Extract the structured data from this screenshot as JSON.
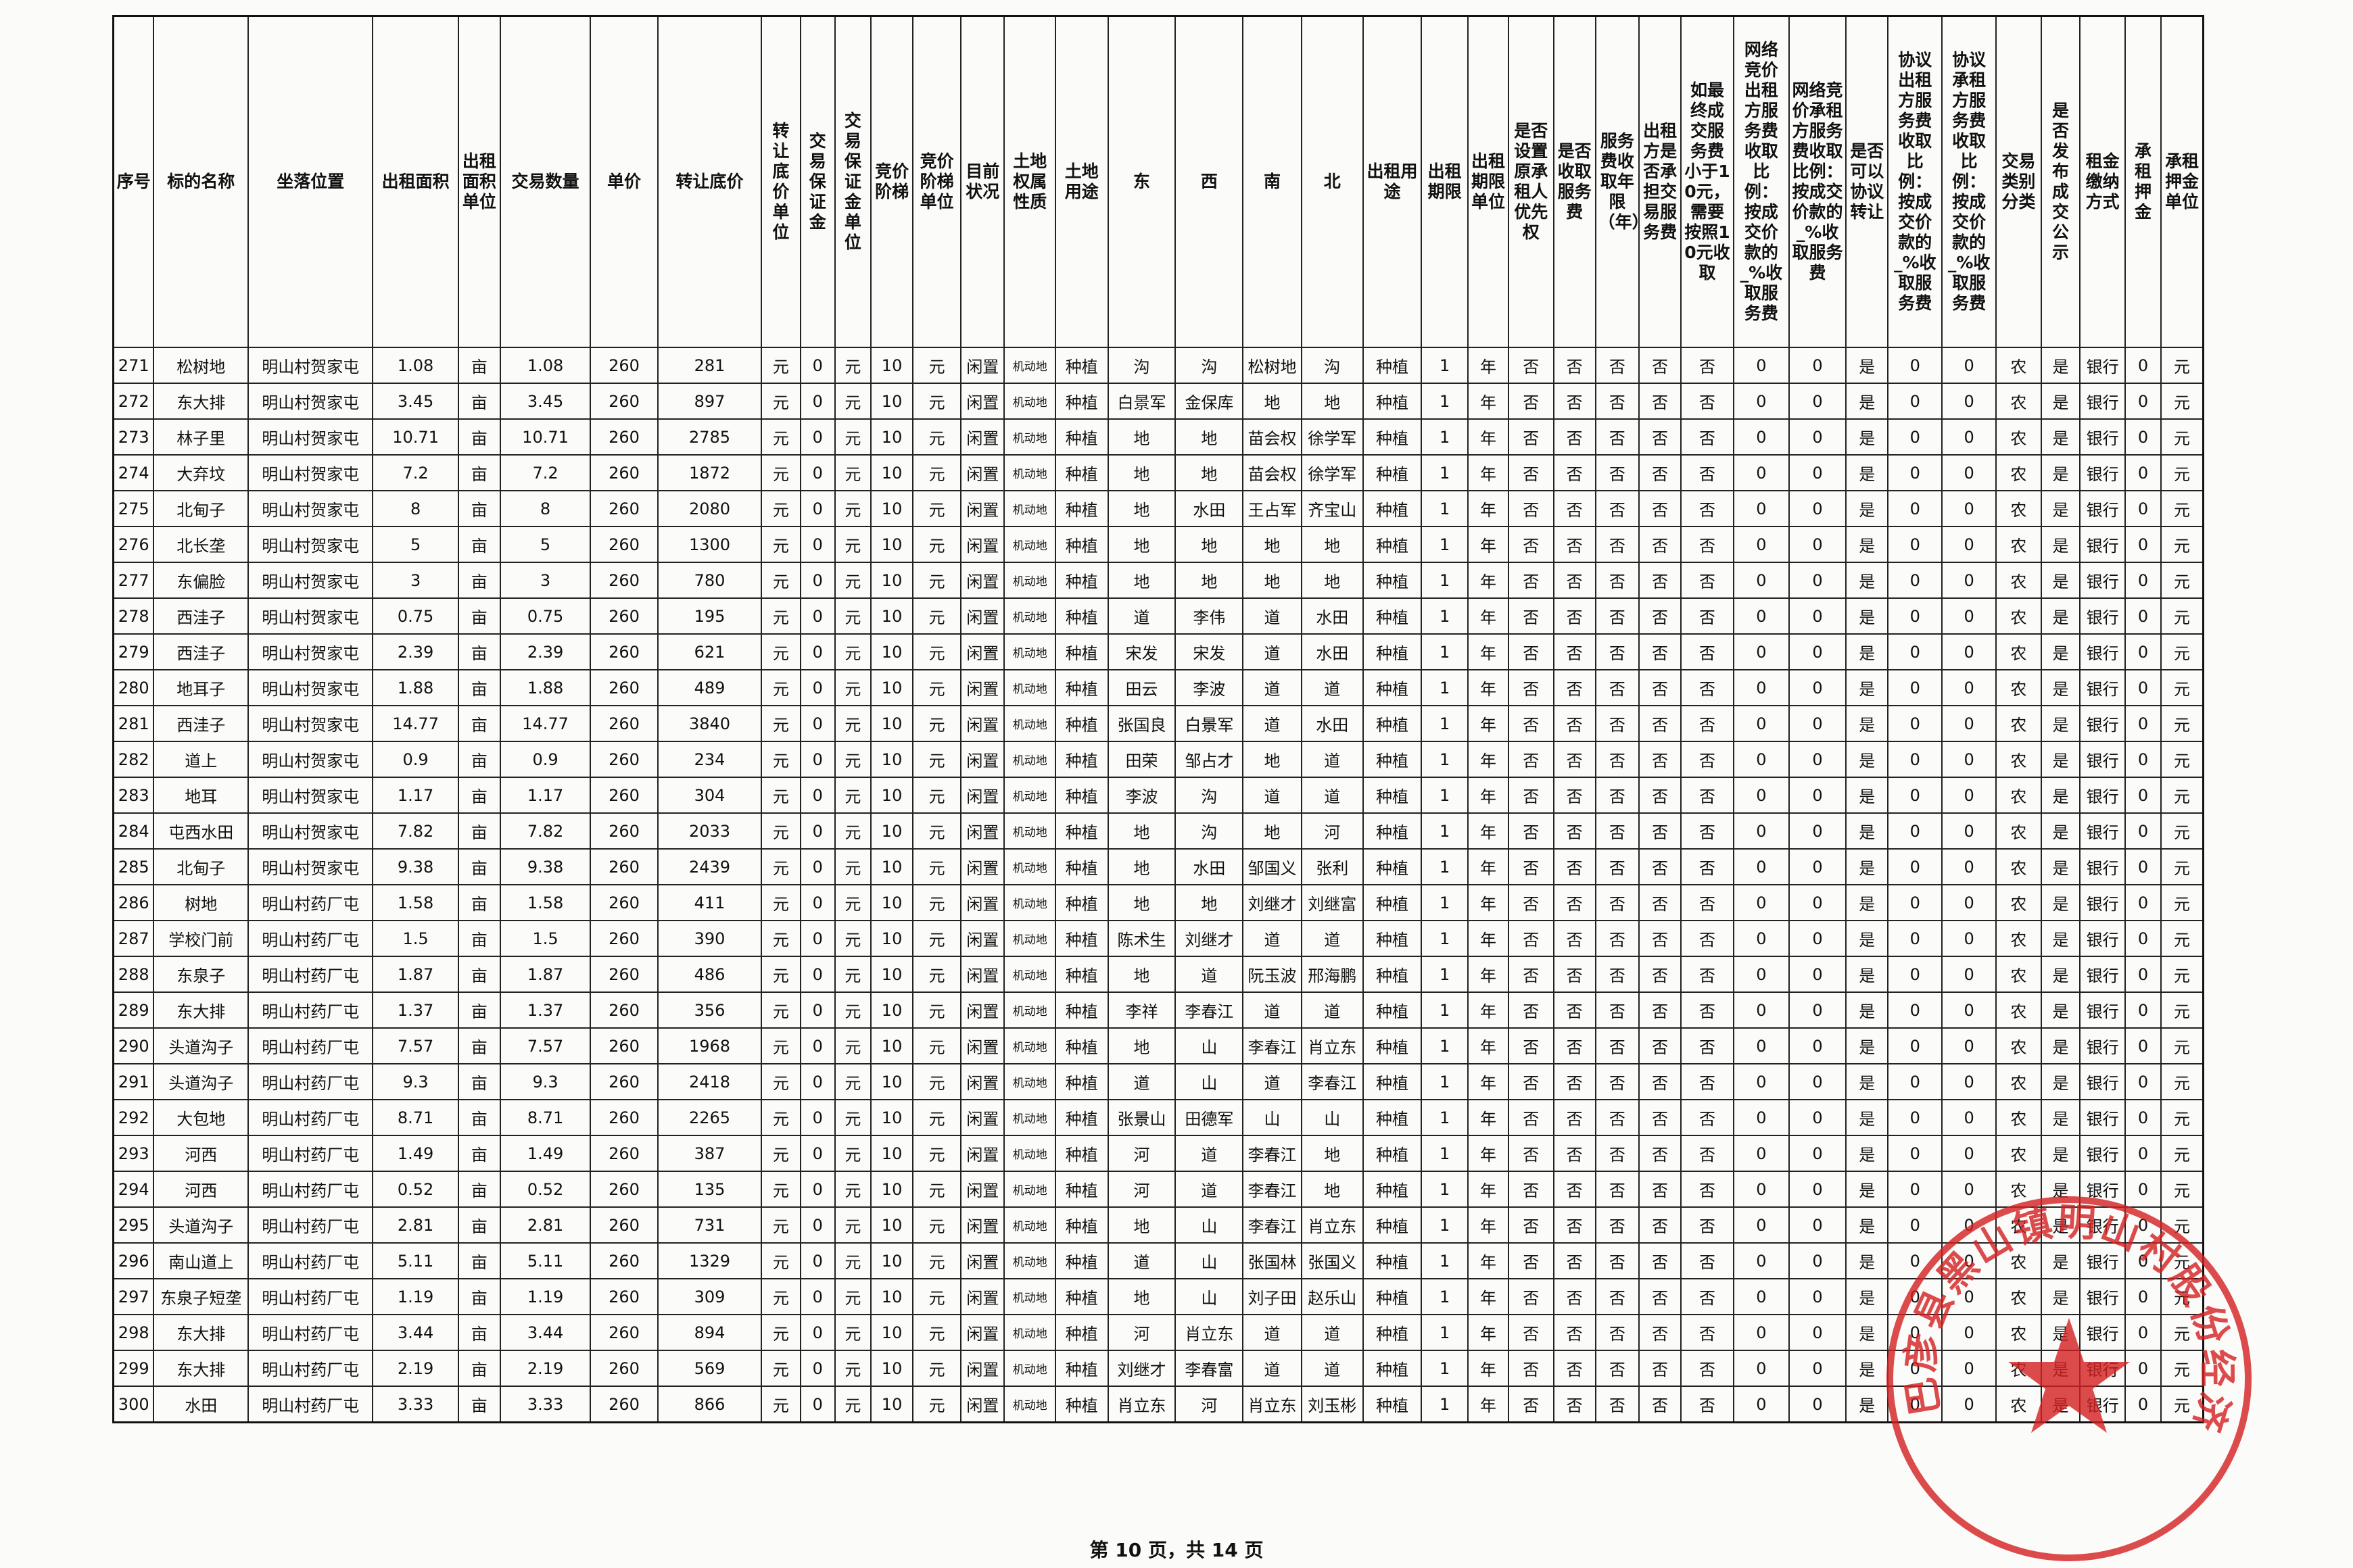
{
  "table": {
    "headers": [
      "序号",
      "标的名称",
      "坐落位置",
      "出租面积",
      "出租面积单位",
      "交易数量",
      "单价",
      "转让底价",
      "转让底价单位",
      "交易保证金",
      "交易保证金单位",
      "竞价阶梯",
      "竞价阶梯单位",
      "目前状况",
      "土地权属性质",
      "土地用途",
      "东",
      "西",
      "南",
      "北",
      "出租用途",
      "出租期限",
      "出租期限单位",
      "是否设置原承租人优先权",
      "是否收取服务费",
      "服务费收取年限（年）",
      "出租方是否承担交易服务费",
      "如最终成交服务费小于10元，需要按照10元收取",
      "网络竞价出租方服务费收取比例：按成交价款的_%收取服务费",
      "网络竞价承租方服务费收取比例：按成交价款的_%收取服务费",
      "是否可以协议转让",
      "协议出租方服务费收取比例：按成交价款的_%收取服务费",
      "协议承租方服务费收取比例：按成交价款的_%收取服务费",
      "交易类别分类",
      "是否发布成交公示",
      "租金缴纳方式",
      "承租押金",
      "承租押金单位"
    ],
    "rows": [
      [
        "271",
        "松树地",
        "明山村贺家屯",
        "1.08",
        "亩",
        "1.08",
        "260",
        "281",
        "元",
        "0",
        "元",
        "10",
        "元",
        "闲置",
        "机动地",
        "种植",
        "沟",
        "沟",
        "松树地",
        "沟",
        "种植",
        "1",
        "年",
        "否",
        "否",
        "否",
        "否",
        "否",
        "0",
        "0",
        "是",
        "0",
        "0",
        "农",
        "是",
        "银行",
        "0",
        "元"
      ],
      [
        "272",
        "东大排",
        "明山村贺家屯",
        "3.45",
        "亩",
        "3.45",
        "260",
        "897",
        "元",
        "0",
        "元",
        "10",
        "元",
        "闲置",
        "机动地",
        "种植",
        "白景军",
        "金保库",
        "地",
        "地",
        "种植",
        "1",
        "年",
        "否",
        "否",
        "否",
        "否",
        "否",
        "0",
        "0",
        "是",
        "0",
        "0",
        "农",
        "是",
        "银行",
        "0",
        "元"
      ],
      [
        "273",
        "林子里",
        "明山村贺家屯",
        "10.71",
        "亩",
        "10.71",
        "260",
        "2785",
        "元",
        "0",
        "元",
        "10",
        "元",
        "闲置",
        "机动地",
        "种植",
        "地",
        "地",
        "苗会权",
        "徐学军",
        "种植",
        "1",
        "年",
        "否",
        "否",
        "否",
        "否",
        "否",
        "0",
        "0",
        "是",
        "0",
        "0",
        "农",
        "是",
        "银行",
        "0",
        "元"
      ],
      [
        "274",
        "大弃坟",
        "明山村贺家屯",
        "7.2",
        "亩",
        "7.2",
        "260",
        "1872",
        "元",
        "0",
        "元",
        "10",
        "元",
        "闲置",
        "机动地",
        "种植",
        "地",
        "地",
        "苗会权",
        "徐学军",
        "种植",
        "1",
        "年",
        "否",
        "否",
        "否",
        "否",
        "否",
        "0",
        "0",
        "是",
        "0",
        "0",
        "农",
        "是",
        "银行",
        "0",
        "元"
      ],
      [
        "275",
        "北甸子",
        "明山村贺家屯",
        "8",
        "亩",
        "8",
        "260",
        "2080",
        "元",
        "0",
        "元",
        "10",
        "元",
        "闲置",
        "机动地",
        "种植",
        "地",
        "水田",
        "王占军",
        "齐宝山",
        "种植",
        "1",
        "年",
        "否",
        "否",
        "否",
        "否",
        "否",
        "0",
        "0",
        "是",
        "0",
        "0",
        "农",
        "是",
        "银行",
        "0",
        "元"
      ],
      [
        "276",
        "北长垄",
        "明山村贺家屯",
        "5",
        "亩",
        "5",
        "260",
        "1300",
        "元",
        "0",
        "元",
        "10",
        "元",
        "闲置",
        "机动地",
        "种植",
        "地",
        "地",
        "地",
        "地",
        "种植",
        "1",
        "年",
        "否",
        "否",
        "否",
        "否",
        "否",
        "0",
        "0",
        "是",
        "0",
        "0",
        "农",
        "是",
        "银行",
        "0",
        "元"
      ],
      [
        "277",
        "东偏脸",
        "明山村贺家屯",
        "3",
        "亩",
        "3",
        "260",
        "780",
        "元",
        "0",
        "元",
        "10",
        "元",
        "闲置",
        "机动地",
        "种植",
        "地",
        "地",
        "地",
        "地",
        "种植",
        "1",
        "年",
        "否",
        "否",
        "否",
        "否",
        "否",
        "0",
        "0",
        "是",
        "0",
        "0",
        "农",
        "是",
        "银行",
        "0",
        "元"
      ],
      [
        "278",
        "西洼子",
        "明山村贺家屯",
        "0.75",
        "亩",
        "0.75",
        "260",
        "195",
        "元",
        "0",
        "元",
        "10",
        "元",
        "闲置",
        "机动地",
        "种植",
        "道",
        "李伟",
        "道",
        "水田",
        "种植",
        "1",
        "年",
        "否",
        "否",
        "否",
        "否",
        "否",
        "0",
        "0",
        "是",
        "0",
        "0",
        "农",
        "是",
        "银行",
        "0",
        "元"
      ],
      [
        "279",
        "西洼子",
        "明山村贺家屯",
        "2.39",
        "亩",
        "2.39",
        "260",
        "621",
        "元",
        "0",
        "元",
        "10",
        "元",
        "闲置",
        "机动地",
        "种植",
        "宋发",
        "宋发",
        "道",
        "水田",
        "种植",
        "1",
        "年",
        "否",
        "否",
        "否",
        "否",
        "否",
        "0",
        "0",
        "是",
        "0",
        "0",
        "农",
        "是",
        "银行",
        "0",
        "元"
      ],
      [
        "280",
        "地耳子",
        "明山村贺家屯",
        "1.88",
        "亩",
        "1.88",
        "260",
        "489",
        "元",
        "0",
        "元",
        "10",
        "元",
        "闲置",
        "机动地",
        "种植",
        "田云",
        "李波",
        "道",
        "道",
        "种植",
        "1",
        "年",
        "否",
        "否",
        "否",
        "否",
        "否",
        "0",
        "0",
        "是",
        "0",
        "0",
        "农",
        "是",
        "银行",
        "0",
        "元"
      ],
      [
        "281",
        "西洼子",
        "明山村贺家屯",
        "14.77",
        "亩",
        "14.77",
        "260",
        "3840",
        "元",
        "0",
        "元",
        "10",
        "元",
        "闲置",
        "机动地",
        "种植",
        "张国良",
        "白景军",
        "道",
        "水田",
        "种植",
        "1",
        "年",
        "否",
        "否",
        "否",
        "否",
        "否",
        "0",
        "0",
        "是",
        "0",
        "0",
        "农",
        "是",
        "银行",
        "0",
        "元"
      ],
      [
        "282",
        "道上",
        "明山村贺家屯",
        "0.9",
        "亩",
        "0.9",
        "260",
        "234",
        "元",
        "0",
        "元",
        "10",
        "元",
        "闲置",
        "机动地",
        "种植",
        "田荣",
        "邹占才",
        "地",
        "道",
        "种植",
        "1",
        "年",
        "否",
        "否",
        "否",
        "否",
        "否",
        "0",
        "0",
        "是",
        "0",
        "0",
        "农",
        "是",
        "银行",
        "0",
        "元"
      ],
      [
        "283",
        "地耳",
        "明山村贺家屯",
        "1.17",
        "亩",
        "1.17",
        "260",
        "304",
        "元",
        "0",
        "元",
        "10",
        "元",
        "闲置",
        "机动地",
        "种植",
        "李波",
        "沟",
        "道",
        "道",
        "种植",
        "1",
        "年",
        "否",
        "否",
        "否",
        "否",
        "否",
        "0",
        "0",
        "是",
        "0",
        "0",
        "农",
        "是",
        "银行",
        "0",
        "元"
      ],
      [
        "284",
        "屯西水田",
        "明山村贺家屯",
        "7.82",
        "亩",
        "7.82",
        "260",
        "2033",
        "元",
        "0",
        "元",
        "10",
        "元",
        "闲置",
        "机动地",
        "种植",
        "地",
        "沟",
        "地",
        "河",
        "种植",
        "1",
        "年",
        "否",
        "否",
        "否",
        "否",
        "否",
        "0",
        "0",
        "是",
        "0",
        "0",
        "农",
        "是",
        "银行",
        "0",
        "元"
      ],
      [
        "285",
        "北甸子",
        "明山村贺家屯",
        "9.38",
        "亩",
        "9.38",
        "260",
        "2439",
        "元",
        "0",
        "元",
        "10",
        "元",
        "闲置",
        "机动地",
        "种植",
        "地",
        "水田",
        "邹国义",
        "张利",
        "种植",
        "1",
        "年",
        "否",
        "否",
        "否",
        "否",
        "否",
        "0",
        "0",
        "是",
        "0",
        "0",
        "农",
        "是",
        "银行",
        "0",
        "元"
      ],
      [
        "286",
        "树地",
        "明山村药厂屯",
        "1.58",
        "亩",
        "1.58",
        "260",
        "411",
        "元",
        "0",
        "元",
        "10",
        "元",
        "闲置",
        "机动地",
        "种植",
        "地",
        "地",
        "刘继才",
        "刘继富",
        "种植",
        "1",
        "年",
        "否",
        "否",
        "否",
        "否",
        "否",
        "0",
        "0",
        "是",
        "0",
        "0",
        "农",
        "是",
        "银行",
        "0",
        "元"
      ],
      [
        "287",
        "学校门前",
        "明山村药厂屯",
        "1.5",
        "亩",
        "1.5",
        "260",
        "390",
        "元",
        "0",
        "元",
        "10",
        "元",
        "闲置",
        "机动地",
        "种植",
        "陈术生",
        "刘继才",
        "道",
        "道",
        "种植",
        "1",
        "年",
        "否",
        "否",
        "否",
        "否",
        "否",
        "0",
        "0",
        "是",
        "0",
        "0",
        "农",
        "是",
        "银行",
        "0",
        "元"
      ],
      [
        "288",
        "东泉子",
        "明山村药厂屯",
        "1.87",
        "亩",
        "1.87",
        "260",
        "486",
        "元",
        "0",
        "元",
        "10",
        "元",
        "闲置",
        "机动地",
        "种植",
        "地",
        "道",
        "阮玉波",
        "邢海鹏",
        "种植",
        "1",
        "年",
        "否",
        "否",
        "否",
        "否",
        "否",
        "0",
        "0",
        "是",
        "0",
        "0",
        "农",
        "是",
        "银行",
        "0",
        "元"
      ],
      [
        "289",
        "东大排",
        "明山村药厂屯",
        "1.37",
        "亩",
        "1.37",
        "260",
        "356",
        "元",
        "0",
        "元",
        "10",
        "元",
        "闲置",
        "机动地",
        "种植",
        "李祥",
        "李春江",
        "道",
        "道",
        "种植",
        "1",
        "年",
        "否",
        "否",
        "否",
        "否",
        "否",
        "0",
        "0",
        "是",
        "0",
        "0",
        "农",
        "是",
        "银行",
        "0",
        "元"
      ],
      [
        "290",
        "头道沟子",
        "明山村药厂屯",
        "7.57",
        "亩",
        "7.57",
        "260",
        "1968",
        "元",
        "0",
        "元",
        "10",
        "元",
        "闲置",
        "机动地",
        "种植",
        "地",
        "山",
        "李春江",
        "肖立东",
        "种植",
        "1",
        "年",
        "否",
        "否",
        "否",
        "否",
        "否",
        "0",
        "0",
        "是",
        "0",
        "0",
        "农",
        "是",
        "银行",
        "0",
        "元"
      ],
      [
        "291",
        "头道沟子",
        "明山村药厂屯",
        "9.3",
        "亩",
        "9.3",
        "260",
        "2418",
        "元",
        "0",
        "元",
        "10",
        "元",
        "闲置",
        "机动地",
        "种植",
        "道",
        "山",
        "道",
        "李春江",
        "种植",
        "1",
        "年",
        "否",
        "否",
        "否",
        "否",
        "否",
        "0",
        "0",
        "是",
        "0",
        "0",
        "农",
        "是",
        "银行",
        "0",
        "元"
      ],
      [
        "292",
        "大包地",
        "明山村药厂屯",
        "8.71",
        "亩",
        "8.71",
        "260",
        "2265",
        "元",
        "0",
        "元",
        "10",
        "元",
        "闲置",
        "机动地",
        "种植",
        "张景山",
        "田德军",
        "山",
        "山",
        "种植",
        "1",
        "年",
        "否",
        "否",
        "否",
        "否",
        "否",
        "0",
        "0",
        "是",
        "0",
        "0",
        "农",
        "是",
        "银行",
        "0",
        "元"
      ],
      [
        "293",
        "河西",
        "明山村药厂屯",
        "1.49",
        "亩",
        "1.49",
        "260",
        "387",
        "元",
        "0",
        "元",
        "10",
        "元",
        "闲置",
        "机动地",
        "种植",
        "河",
        "道",
        "李春江",
        "地",
        "种植",
        "1",
        "年",
        "否",
        "否",
        "否",
        "否",
        "否",
        "0",
        "0",
        "是",
        "0",
        "0",
        "农",
        "是",
        "银行",
        "0",
        "元"
      ],
      [
        "294",
        "河西",
        "明山村药厂屯",
        "0.52",
        "亩",
        "0.52",
        "260",
        "135",
        "元",
        "0",
        "元",
        "10",
        "元",
        "闲置",
        "机动地",
        "种植",
        "河",
        "道",
        "李春江",
        "地",
        "种植",
        "1",
        "年",
        "否",
        "否",
        "否",
        "否",
        "否",
        "0",
        "0",
        "是",
        "0",
        "0",
        "农",
        "是",
        "银行",
        "0",
        "元"
      ],
      [
        "295",
        "头道沟子",
        "明山村药厂屯",
        "2.81",
        "亩",
        "2.81",
        "260",
        "731",
        "元",
        "0",
        "元",
        "10",
        "元",
        "闲置",
        "机动地",
        "种植",
        "地",
        "山",
        "李春江",
        "肖立东",
        "种植",
        "1",
        "年",
        "否",
        "否",
        "否",
        "否",
        "否",
        "0",
        "0",
        "是",
        "0",
        "0",
        "农",
        "是",
        "银行",
        "0",
        "元"
      ],
      [
        "296",
        "南山道上",
        "明山村药厂屯",
        "5.11",
        "亩",
        "5.11",
        "260",
        "1329",
        "元",
        "0",
        "元",
        "10",
        "元",
        "闲置",
        "机动地",
        "种植",
        "道",
        "山",
        "张国林",
        "张国义",
        "种植",
        "1",
        "年",
        "否",
        "否",
        "否",
        "否",
        "否",
        "0",
        "0",
        "是",
        "0",
        "0",
        "农",
        "是",
        "银行",
        "0",
        "元"
      ],
      [
        "297",
        "东泉子短垄",
        "明山村药厂屯",
        "1.19",
        "亩",
        "1.19",
        "260",
        "309",
        "元",
        "0",
        "元",
        "10",
        "元",
        "闲置",
        "机动地",
        "种植",
        "地",
        "山",
        "刘子田",
        "赵乐山",
        "种植",
        "1",
        "年",
        "否",
        "否",
        "否",
        "否",
        "否",
        "0",
        "0",
        "是",
        "0",
        "0",
        "农",
        "是",
        "银行",
        "0",
        "元"
      ],
      [
        "298",
        "东大排",
        "明山村药厂屯",
        "3.44",
        "亩",
        "3.44",
        "260",
        "894",
        "元",
        "0",
        "元",
        "10",
        "元",
        "闲置",
        "机动地",
        "种植",
        "河",
        "肖立东",
        "道",
        "道",
        "种植",
        "1",
        "年",
        "否",
        "否",
        "否",
        "否",
        "否",
        "0",
        "0",
        "是",
        "0",
        "0",
        "农",
        "是",
        "银行",
        "0",
        "元"
      ],
      [
        "299",
        "东大排",
        "明山村药厂屯",
        "2.19",
        "亩",
        "2.19",
        "260",
        "569",
        "元",
        "0",
        "元",
        "10",
        "元",
        "闲置",
        "机动地",
        "种植",
        "刘继才",
        "李春富",
        "道",
        "道",
        "种植",
        "1",
        "年",
        "否",
        "否",
        "否",
        "否",
        "否",
        "0",
        "0",
        "是",
        "0",
        "0",
        "农",
        "是",
        "银行",
        "0",
        "元"
      ],
      [
        "300",
        "水田",
        "明山村药厂屯",
        "3.33",
        "亩",
        "3.33",
        "260",
        "866",
        "元",
        "0",
        "元",
        "10",
        "元",
        "闲置",
        "机动地",
        "种植",
        "肖立东",
        "河",
        "肖立东",
        "刘玉彬",
        "种植",
        "1",
        "年",
        "否",
        "否",
        "否",
        "否",
        "否",
        "0",
        "0",
        "是",
        "0",
        "0",
        "农",
        "是",
        "银行",
        "0",
        "元"
      ]
    ]
  },
  "stamp": "巴彦县黑山镇明山村股份经济合作社",
  "footer": "第 10 页，共 14 页"
}
